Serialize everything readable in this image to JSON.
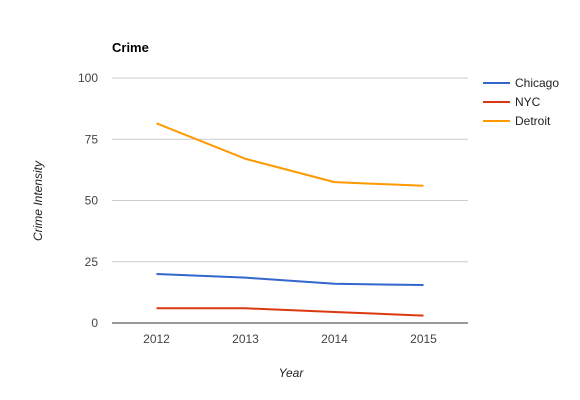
{
  "chart_data": {
    "type": "line",
    "title": "Crime",
    "xlabel": "Year",
    "ylabel": "Crime Intensity",
    "categories": [
      "2012",
      "2013",
      "2014",
      "2015"
    ],
    "yticks": [
      "0",
      "25",
      "50",
      "75",
      "100"
    ],
    "ylim": [
      0,
      100
    ],
    "grid": true,
    "legend_position": "right",
    "series": [
      {
        "name": "Chicago",
        "color": "#3366cc",
        "values": [
          20,
          18.5,
          16,
          15.5
        ]
      },
      {
        "name": "NYC",
        "color": "#dc3912",
        "values": [
          6,
          6,
          4.5,
          3
        ]
      },
      {
        "name": "Detroit",
        "color": "#ff9900",
        "values": [
          81.5,
          67,
          57.5,
          56
        ]
      }
    ]
  }
}
